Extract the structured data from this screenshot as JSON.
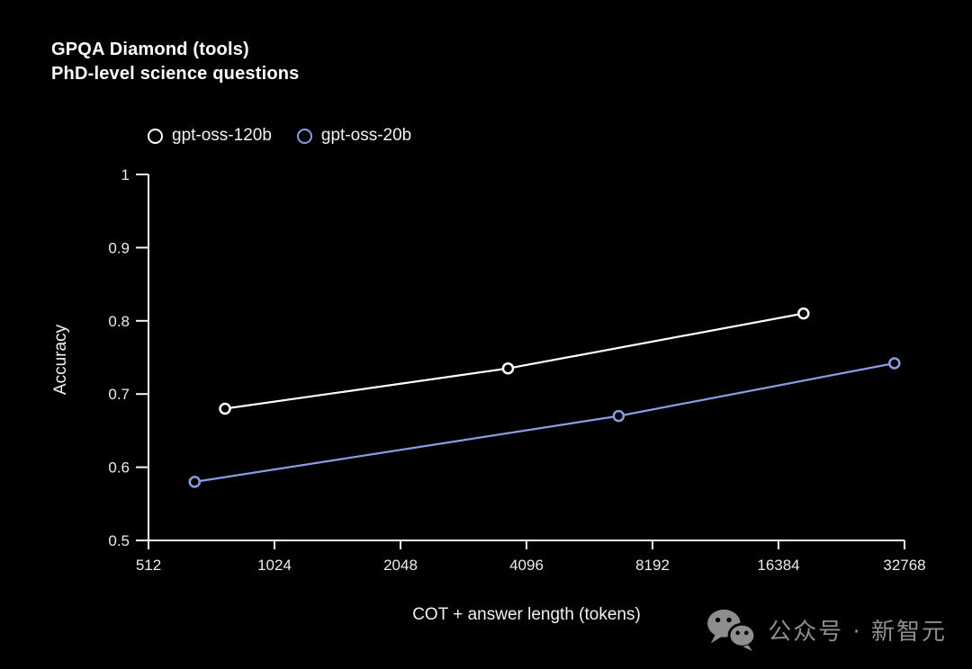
{
  "title": {
    "line1": "GPQA Diamond (tools)",
    "line2": "PhD-level science questions"
  },
  "watermark": {
    "icon": "wechat-icon",
    "text": "公众号 · 新智元",
    "color": "#8e8e8e"
  },
  "chart_data": {
    "type": "line",
    "title": "GPQA Diamond (tools)",
    "subtitle": "PhD-level science questions",
    "xlabel": "COT + answer length (tokens)",
    "ylabel": "Accuracy",
    "x_scale": "log2",
    "xlim": [
      512,
      32768
    ],
    "ylim": [
      0.5,
      1.0
    ],
    "x_ticks": [
      512,
      1024,
      2048,
      4096,
      8192,
      16384,
      32768
    ],
    "x_tick_labels": [
      "512",
      "1024",
      "2048",
      "4096",
      "8192",
      "16384",
      "32768"
    ],
    "y_ticks": [
      0.5,
      0.6,
      0.7,
      0.8,
      0.9,
      1.0
    ],
    "y_tick_labels": [
      "0.5",
      "0.6",
      "0.7",
      "0.8",
      "0.9",
      "1"
    ],
    "grid": false,
    "legend_position": "top-left",
    "marker": "open-circle",
    "axis_color": "#f5f5f5",
    "tick_label_color": "#ececec",
    "series": [
      {
        "name": "gpt-oss-120b",
        "color": "#ffffff",
        "points": [
          [
            780,
            0.68
          ],
          [
            3700,
            0.735
          ],
          [
            18800,
            0.81
          ]
        ]
      },
      {
        "name": "gpt-oss-20b",
        "color": "#8a9de4",
        "points": [
          [
            660,
            0.58
          ],
          [
            6800,
            0.67
          ],
          [
            31000,
            0.742
          ]
        ]
      }
    ]
  }
}
